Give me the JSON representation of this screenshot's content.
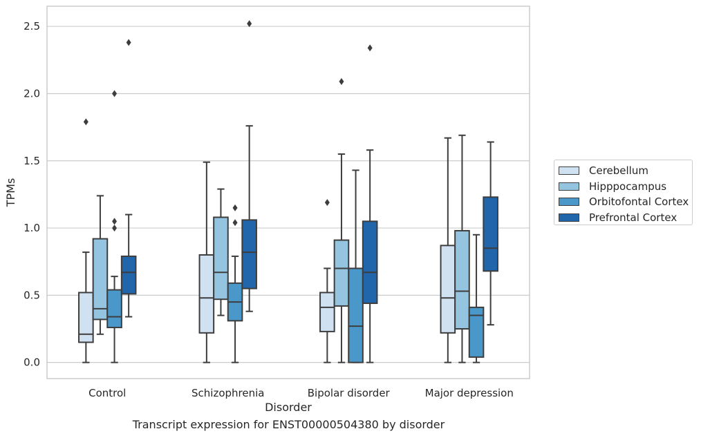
{
  "caption": "Transcript expression for ENST00000504380 by disorder",
  "chart_data": {
    "type": "box",
    "xlabel": "Disorder",
    "ylabel": "TPMs",
    "ylim": [
      -0.12,
      2.65
    ],
    "yticks": [
      0.0,
      0.5,
      1.0,
      1.5,
      2.0,
      2.5
    ],
    "ytick_labels": [
      "0.0",
      "0.5",
      "1.0",
      "1.5",
      "2.0",
      "2.5"
    ],
    "grid": "horizontal",
    "legend_position": "right",
    "categories": [
      "Control",
      "Schizophrenia",
      "Bipolar disorder",
      "Major depression"
    ],
    "series": [
      {
        "name": "Cerebellum",
        "color": "#d0e1f2",
        "boxes": [
          {
            "whislo": 0.0,
            "q1": 0.15,
            "med": 0.21,
            "q3": 0.52,
            "whishi": 0.82,
            "fliers": [
              1.79
            ]
          },
          {
            "whislo": 0.0,
            "q1": 0.22,
            "med": 0.48,
            "q3": 0.8,
            "whishi": 1.49,
            "fliers": []
          },
          {
            "whislo": 0.0,
            "q1": 0.23,
            "med": 0.41,
            "q3": 0.52,
            "whishi": 0.7,
            "fliers": [
              1.19
            ]
          },
          {
            "whislo": 0.0,
            "q1": 0.22,
            "med": 0.48,
            "q3": 0.87,
            "whishi": 1.67,
            "fliers": []
          }
        ]
      },
      {
        "name": "Hipppocampus",
        "color": "#94c4df",
        "boxes": [
          {
            "whislo": 0.21,
            "q1": 0.32,
            "med": 0.4,
            "q3": 0.92,
            "whishi": 1.24,
            "fliers": []
          },
          {
            "whislo": 0.35,
            "q1": 0.47,
            "med": 0.67,
            "q3": 1.08,
            "whishi": 1.29,
            "fliers": []
          },
          {
            "whislo": 0.0,
            "q1": 0.42,
            "med": 0.7,
            "q3": 0.91,
            "whishi": 1.55,
            "fliers": [
              2.09
            ]
          },
          {
            "whislo": 0.0,
            "q1": 0.25,
            "med": 0.53,
            "q3": 0.98,
            "whishi": 1.69,
            "fliers": []
          }
        ]
      },
      {
        "name": "Orbitofontal Cortex",
        "color": "#4a98c9",
        "boxes": [
          {
            "whislo": 0.0,
            "q1": 0.26,
            "med": 0.34,
            "q3": 0.54,
            "whishi": 0.64,
            "fliers": [
              1.05,
              1.0,
              2.0
            ]
          },
          {
            "whislo": 0.0,
            "q1": 0.31,
            "med": 0.45,
            "q3": 0.59,
            "whishi": 0.79,
            "fliers": [
              1.04,
              1.15
            ]
          },
          {
            "whislo": 0.0,
            "q1": 0.0,
            "med": 0.27,
            "q3": 0.7,
            "whishi": 1.43,
            "fliers": []
          },
          {
            "whislo": 0.0,
            "q1": 0.04,
            "med": 0.35,
            "q3": 0.41,
            "whishi": 0.95,
            "fliers": []
          }
        ]
      },
      {
        "name": "Prefrontal Cortex",
        "color": "#2165ab",
        "boxes": [
          {
            "whislo": 0.34,
            "q1": 0.51,
            "med": 0.67,
            "q3": 0.79,
            "whishi": 1.1,
            "fliers": [
              2.38
            ]
          },
          {
            "whislo": 0.38,
            "q1": 0.55,
            "med": 0.82,
            "q3": 1.06,
            "whishi": 1.76,
            "fliers": [
              2.52
            ]
          },
          {
            "whislo": 0.0,
            "q1": 0.44,
            "med": 0.67,
            "q3": 1.05,
            "whishi": 1.58,
            "fliers": [
              2.34
            ]
          },
          {
            "whislo": 0.28,
            "q1": 0.68,
            "med": 0.85,
            "q3": 1.23,
            "whishi": 1.64,
            "fliers": []
          }
        ]
      }
    ]
  }
}
